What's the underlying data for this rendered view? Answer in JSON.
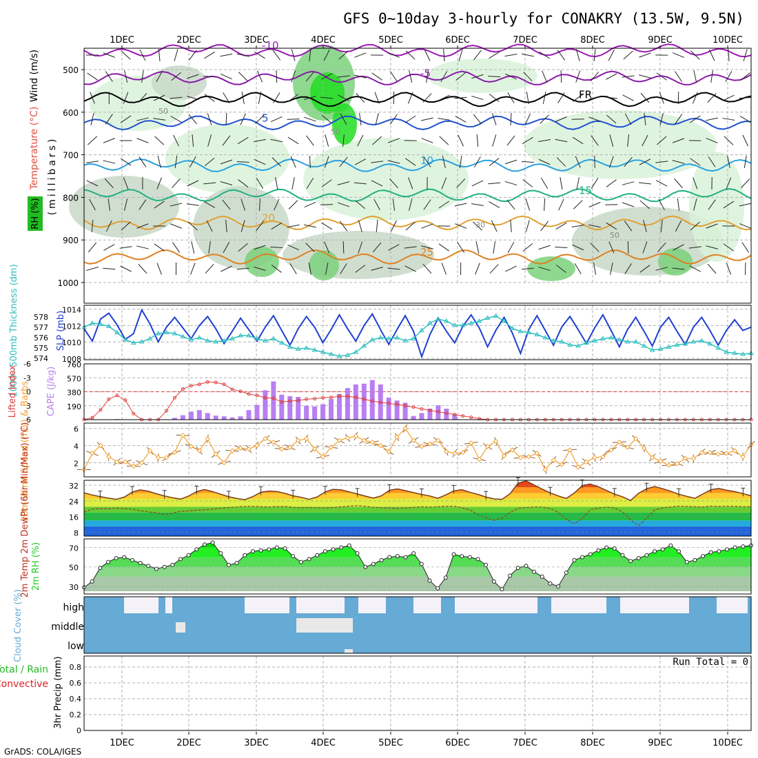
{
  "title": "GFS 0~10day 3-hourly for CONAKRY (13.5W, 9.5N)",
  "credit": "GrADS: COLA/IGES",
  "days": [
    "1DEC",
    "2DEC",
    "3DEC",
    "4DEC",
    "5DEC",
    "6DEC",
    "7DEC",
    "8DEC",
    "9DEC",
    "10DEC"
  ],
  "colors": {
    "grid": "#b0b0b0",
    "rh_dark": "#2e9e2e",
    "rh_mid": "#7bd17b",
    "rh_light": "#d9f2d9",
    "slp": "#1f3fd1",
    "thick": "#2fbfbf",
    "li": "#e03c3c",
    "cape": "#b87ef2",
    "wind10": "#f0a030",
    "cloud": "#66aad6",
    "rh2m": "#22cc22"
  },
  "chart_data": [
    {
      "type": "contour",
      "panel": "upper-air",
      "ylabels": {
        "wind": "Wind (m/s)",
        "temp": "Temperature (°C)",
        "rh": "RH (%)",
        "units": "(millibars)"
      },
      "pressure_ticks": [
        "500",
        "600",
        "700",
        "800",
        "900",
        "1000"
      ],
      "temperature_isotherms": [
        {
          "label": "-10",
          "p": 455
        },
        {
          "label": "-5",
          "p": 520
        },
        {
          "label": "FR",
          "p": 570
        },
        {
          "label": "5",
          "p": 625
        },
        {
          "label": "10",
          "p": 725
        },
        {
          "label": "15",
          "p": 795
        },
        {
          "label": "20",
          "p": 860
        },
        {
          "label": "25",
          "p": 940
        }
      ],
      "rh_labels": [
        "50",
        "50",
        "30",
        "50"
      ]
    },
    {
      "type": "line",
      "panel": "slp-thickness",
      "ylabel_left": "1000~500mb Thickness (dm)",
      "ylabel_right": "SLP (mb)",
      "left_ticks": [
        "578",
        "577",
        "576",
        "575",
        "574"
      ],
      "right_ticks": [
        "1014",
        "1012",
        "1010",
        "1008"
      ],
      "slp": [
        1011.6,
        1010.1,
        1012.8,
        1013.5,
        1012.1,
        1010.3,
        1011.0,
        1013.9,
        1012.2,
        1010.0,
        1011.8,
        1013.0,
        1011.7,
        1010.4,
        1012.0,
        1013.1,
        1011.6,
        1009.8,
        1011.3,
        1012.9,
        1011.5,
        1010.1,
        1011.8,
        1013.2,
        1011.4,
        1009.6,
        1011.6,
        1013.1,
        1011.8,
        1009.9,
        1011.5,
        1013.3,
        1011.6,
        1010.1,
        1012.0,
        1013.4,
        1011.5,
        1009.7,
        1011.5,
        1013.2,
        1011.3,
        1008.2,
        1010.9,
        1012.9,
        1011.3,
        1009.9,
        1011.9,
        1013.3,
        1011.7,
        1009.4,
        1011.4,
        1013.0,
        1011.1,
        1008.6,
        1011.5,
        1013.2,
        1011.4,
        1009.6,
        1011.8,
        1013.1,
        1011.5,
        1009.8,
        1011.7,
        1013.3,
        1011.4,
        1009.4,
        1011.5,
        1013.0,
        1011.3,
        1009.5,
        1011.8,
        1013.0,
        1011.3,
        1009.7,
        1011.8,
        1013.0,
        1011.4,
        1009.6,
        1011.4,
        1012.7,
        1011.4,
        1011.8
      ],
      "thickness": [
        577.0,
        577.4,
        577.3,
        577.1,
        576.5,
        575.8,
        575.5,
        575.6,
        575.9,
        576.4,
        576.5,
        576.4,
        576.1,
        575.8,
        576.0,
        575.7,
        575.6,
        575.7,
        575.9,
        576.2,
        576.2,
        575.9,
        575.7,
        575.9,
        575.5,
        575.1,
        574.9,
        575.0,
        574.8,
        574.6,
        574.4,
        574.2,
        574.3,
        574.6,
        575.2,
        575.8,
        576.0,
        575.9,
        576.0,
        575.7,
        575.9,
        576.7,
        577.4,
        577.8,
        577.6,
        577.2,
        577.2,
        577.4,
        577.6,
        577.9,
        578.1,
        577.6,
        576.9,
        576.6,
        576.5,
        576.3,
        576.0,
        575.7,
        575.6,
        575.3,
        575.2,
        575.5,
        575.7,
        575.9,
        576.0,
        575.8,
        575.6,
        575.6,
        575.2,
        574.8,
        574.9,
        575.1,
        575.3,
        575.4,
        575.6,
        575.7,
        575.4,
        575.0,
        574.6,
        574.5,
        574.4,
        574.5
      ]
    },
    {
      "type": "bar",
      "panel": "lifted-index-cape",
      "ylabel_left": "Lifted Index",
      "ylabel_right": "CAPE (J/kg)",
      "left_ticks": [
        "-6",
        "-3",
        "0",
        "3",
        "6"
      ],
      "right_ticks": [
        "760",
        "570",
        "380",
        "190"
      ],
      "lifted_index": [
        6.0,
        5.6,
        3.9,
        1.6,
        0.8,
        1.8,
        4.7,
        6.0,
        6.0,
        6.0,
        4.1,
        1.3,
        -0.6,
        -1.3,
        -1.6,
        -2.1,
        -2.0,
        -1.6,
        -0.5,
        -0.1,
        0.5,
        0.8,
        1.3,
        1.4,
        2.2,
        2.0,
        1.9,
        1.6,
        1.5,
        1.3,
        1.2,
        1.0,
        1.0,
        1.2,
        1.6,
        2.0,
        2.3,
        2.5,
        2.7,
        3.0,
        3.3,
        3.7,
        4.0,
        4.3,
        4.6,
        4.9,
        5.2,
        5.5,
        5.8,
        6.0,
        6.0,
        6.0,
        6.0,
        6.0,
        6.0,
        6.0,
        6.0,
        6.0,
        6.0,
        6.0,
        6.0,
        6.0,
        6.0,
        6.0,
        6.0,
        6.0,
        6.0,
        6.0,
        6.0,
        6.0,
        6.0,
        6.0,
        6.0,
        6.0,
        6.0,
        6.0,
        6.0,
        6.0,
        6.0,
        6.0,
        6.0,
        6.0
      ],
      "cape": [
        0,
        0,
        0,
        0,
        8,
        5,
        0,
        0,
        0,
        0,
        0,
        25,
        60,
        110,
        130,
        90,
        55,
        45,
        30,
        45,
        130,
        200,
        400,
        520,
        340,
        320,
        310,
        190,
        180,
        210,
        280,
        350,
        430,
        480,
        490,
        540,
        480,
        300,
        260,
        230,
        50,
        90,
        150,
        195,
        150,
        70,
        0,
        0,
        0,
        0,
        0,
        0,
        0,
        0,
        0,
        0,
        0,
        0,
        0,
        0,
        0,
        0,
        0,
        0,
        0,
        0,
        0,
        0,
        0,
        0,
        0,
        0,
        0,
        0,
        0,
        0,
        0,
        0,
        0,
        0,
        0,
        0
      ]
    },
    {
      "type": "line",
      "panel": "wind-10m",
      "ylabel": "10m Wind Speed (m/s) & Barbs",
      "ticks": [
        "6",
        "4",
        "2"
      ],
      "speed": [
        1.2,
        3.1,
        4.0,
        2.7,
        2.1,
        2.1,
        1.6,
        2.0,
        3.4,
        2.6,
        2.6,
        3.2,
        5.2,
        3.9,
        3.4,
        4.8,
        3.0,
        2.0,
        3.4,
        3.7,
        3.6,
        4.0,
        4.8,
        4.4,
        3.6,
        3.8,
        4.6,
        4.8,
        3.6,
        2.7,
        3.8,
        4.6,
        4.9,
        5.1,
        4.6,
        4.4,
        4.0,
        3.3,
        5.0,
        6.0,
        4.6,
        3.9,
        4.2,
        4.6,
        3.3,
        3.1,
        3.2,
        4.3,
        2.4,
        3.9,
        4.5,
        2.8,
        3.5,
        2.6,
        2.7,
        3.1,
        1.2,
        2.3,
        1.8,
        3.5,
        1.5,
        2.1,
        2.6,
        2.7,
        3.5,
        4.4,
        3.8,
        4.8,
        3.7,
        2.6,
        2.2,
        1.7,
        1.9,
        2.5,
        2.5,
        3.2,
        3.2,
        3.0,
        3.1,
        3.4,
        2.7,
        4.1,
        5.2,
        3.1,
        3.2,
        3.4,
        2.0,
        2.4,
        2.2,
        2.6,
        3.5,
        1.7,
        3.1,
        4.7,
        4.6,
        3.7,
        2.3,
        2.7,
        2.6,
        2.7,
        2.3,
        2.5,
        4.4,
        3.2,
        4.7,
        3.9,
        2.9,
        2.6,
        2.8,
        2.5,
        3.2,
        3.7,
        3.1,
        4.0,
        4.8,
        2.3,
        2.8,
        3.0,
        5.1,
        4.0,
        4.3,
        3.3,
        3.8,
        3.5,
        5.6,
        1.0,
        2.8,
        3.1,
        1.9,
        4.2,
        3.4,
        3.5,
        3.8,
        3.9,
        3.7,
        1.3,
        3.2,
        5.7,
        4.5,
        1.0,
        4.2,
        3.5,
        3.3,
        2.0,
        4.2,
        4.6,
        3.6,
        2.9,
        2.0,
        5.4,
        2.6,
        3.9,
        3.4,
        4.4,
        1.4,
        4.8,
        4.2,
        2.9,
        1.5,
        3.1,
        1.9,
        2.4,
        3.4,
        3.5,
        3.3,
        2.5,
        1.8,
        4.3,
        3.2,
        4.9,
        3.1,
        2.7,
        1.7,
        2.3,
        2.6,
        4.0,
        4.1,
        2.5,
        2.3,
        5.3,
        3.7,
        4.3,
        3.0,
        2.9,
        2.0,
        2.8,
        1.7,
        3.1,
        4.8,
        3.9,
        4.3,
        5.0,
        1.8,
        3.9,
        3.4,
        3.7,
        2.8,
        5.4,
        3.3,
        2.2,
        2.2,
        4.0
      ]
    },
    {
      "type": "area",
      "panel": "temperature-2m",
      "ylabel": "2m Temp 2m DewPt (6hr Min/Max) (°C)",
      "ticks": [
        "32",
        "24",
        "16",
        "8"
      ],
      "temp": [
        28.1,
        27.0,
        26.2,
        25.4,
        24.8,
        25.9,
        28.5,
        29.6,
        28.9,
        27.6,
        26.5,
        25.6,
        24.9,
        26.4,
        28.7,
        29.8,
        28.7,
        27.4,
        26.1,
        25.2,
        24.6,
        26.2,
        28.4,
        29.0,
        28.8,
        27.8,
        26.6,
        25.8,
        24.8,
        26.0,
        28.6,
        29.9,
        29.6,
        28.6,
        27.5,
        26.4,
        25.4,
        26.6,
        29.4,
        30.1,
        29.2,
        28.2,
        27.3,
        26.5,
        25.3,
        27.0,
        29.1,
        29.7,
        28.4,
        27.3,
        26.0,
        25.0,
        24.8,
        27.6,
        33.0,
        34.2,
        32.1,
        30.0,
        28.1,
        26.5,
        25.2,
        28.0,
        31.9,
        32.6,
        31.2,
        29.3,
        27.5,
        26.1,
        24.2,
        27.9,
        30.2,
        31.3,
        30.2,
        28.9,
        27.4,
        26.3,
        25.3,
        27.5,
        29.7,
        30.3,
        29.4,
        28.7,
        27.7,
        26.6
      ],
      "dewpt": [
        18.2,
        19.8,
        20.1,
        19.9,
        20.4,
        20.0,
        19.8,
        18.9,
        18.4,
        17.9,
        17.0,
        17.7,
        18.7,
        18.8,
        19.3,
        19.4,
        19.8,
        20.2,
        20.6,
        20.9,
        21.2,
        21.2,
        21.0,
        20.9,
        21.1,
        21.1,
        20.7,
        20.5,
        20.6,
        20.5,
        20.4,
        20.6,
        21.0,
        21.3,
        21.6,
        21.2,
        20.7,
        20.5,
        20.4,
        20.2,
        20.4,
        20.7,
        21.0,
        20.8,
        21.0,
        21.2,
        21.3,
        20.5,
        19.4,
        16.9,
        15.3,
        14.1,
        15.1,
        18.0,
        20.2,
        20.6,
        20.9,
        20.9,
        20.1,
        18.1,
        14.7,
        12.3,
        15.0,
        19.5,
        20.3,
        20.9,
        20.4,
        18.3,
        14.3,
        11.3,
        15.2,
        19.3,
        20.5,
        20.9,
        21.3,
        21.2,
        21.0,
        20.9,
        21.3,
        21.2,
        21.3,
        21.2,
        21.1,
        21.0
      ]
    },
    {
      "type": "area",
      "panel": "rh-2m",
      "ylabel": "2m RH (%)",
      "ticks": [
        "70",
        "50",
        "30"
      ],
      "values": [
        29,
        35,
        49,
        55,
        59,
        60,
        57,
        54,
        51,
        48,
        50,
        52,
        58,
        62,
        68,
        73,
        75,
        64,
        52,
        54,
        62,
        66,
        67,
        68,
        70,
        69,
        61,
        55,
        58,
        62,
        66,
        68,
        70,
        72,
        64,
        50,
        53,
        57,
        60,
        61,
        60,
        64,
        53,
        36,
        28,
        39,
        63,
        61,
        60,
        58,
        52,
        35,
        27,
        41,
        49,
        51,
        45,
        40,
        33,
        30,
        44,
        57,
        60,
        63,
        67,
        70,
        69,
        62,
        56,
        59,
        62,
        66,
        68,
        72,
        66,
        55,
        57,
        61,
        65,
        66,
        68,
        70,
        71,
        72
      ]
    },
    {
      "type": "area",
      "panel": "cloud-cover",
      "ylabel": "Cloud Cover (%)",
      "levels": [
        "high",
        "middle",
        "low"
      ]
    },
    {
      "type": "bar",
      "panel": "precip",
      "ylabel_top": "Total / Rain",
      "ylabel_bottom": "Convective",
      "ylabel": "3hr Precip (mm)",
      "ticks": [
        "0.8",
        "0.6",
        "0.4",
        "0.2",
        "0"
      ],
      "run_total": "Run Total = 0"
    }
  ]
}
